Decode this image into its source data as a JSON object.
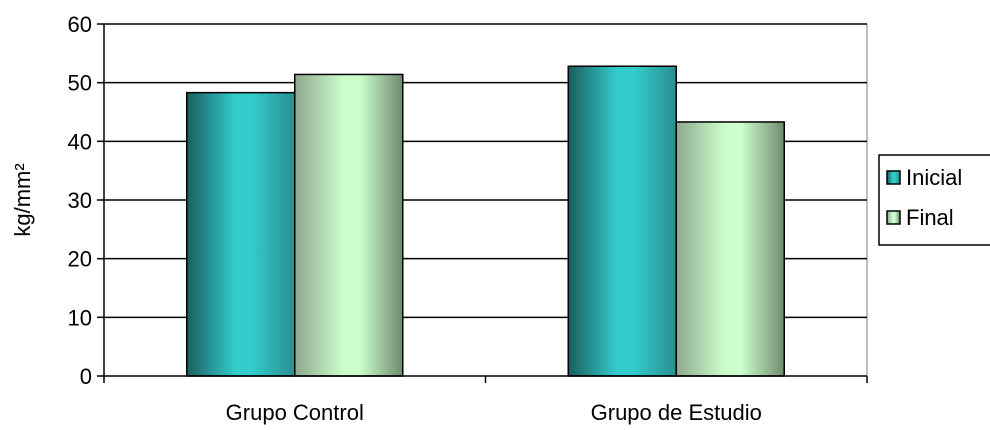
{
  "chart_data": {
    "type": "bar",
    "title": "",
    "xlabel": "",
    "ylabel": "kg/mm²",
    "ylim": [
      0,
      60
    ],
    "yticks": [
      0,
      10,
      20,
      30,
      40,
      50,
      60
    ],
    "grid": true,
    "legend_position": "right",
    "categories": [
      "Grupo Control",
      "Grupo de Estudio"
    ],
    "series": [
      {
        "name": "Inicial",
        "values": [
          48.3,
          52.8
        ],
        "color": "#33CCCC"
      },
      {
        "name": "Final",
        "values": [
          51.4,
          43.3
        ],
        "color": "#CCFFCC"
      }
    ]
  }
}
